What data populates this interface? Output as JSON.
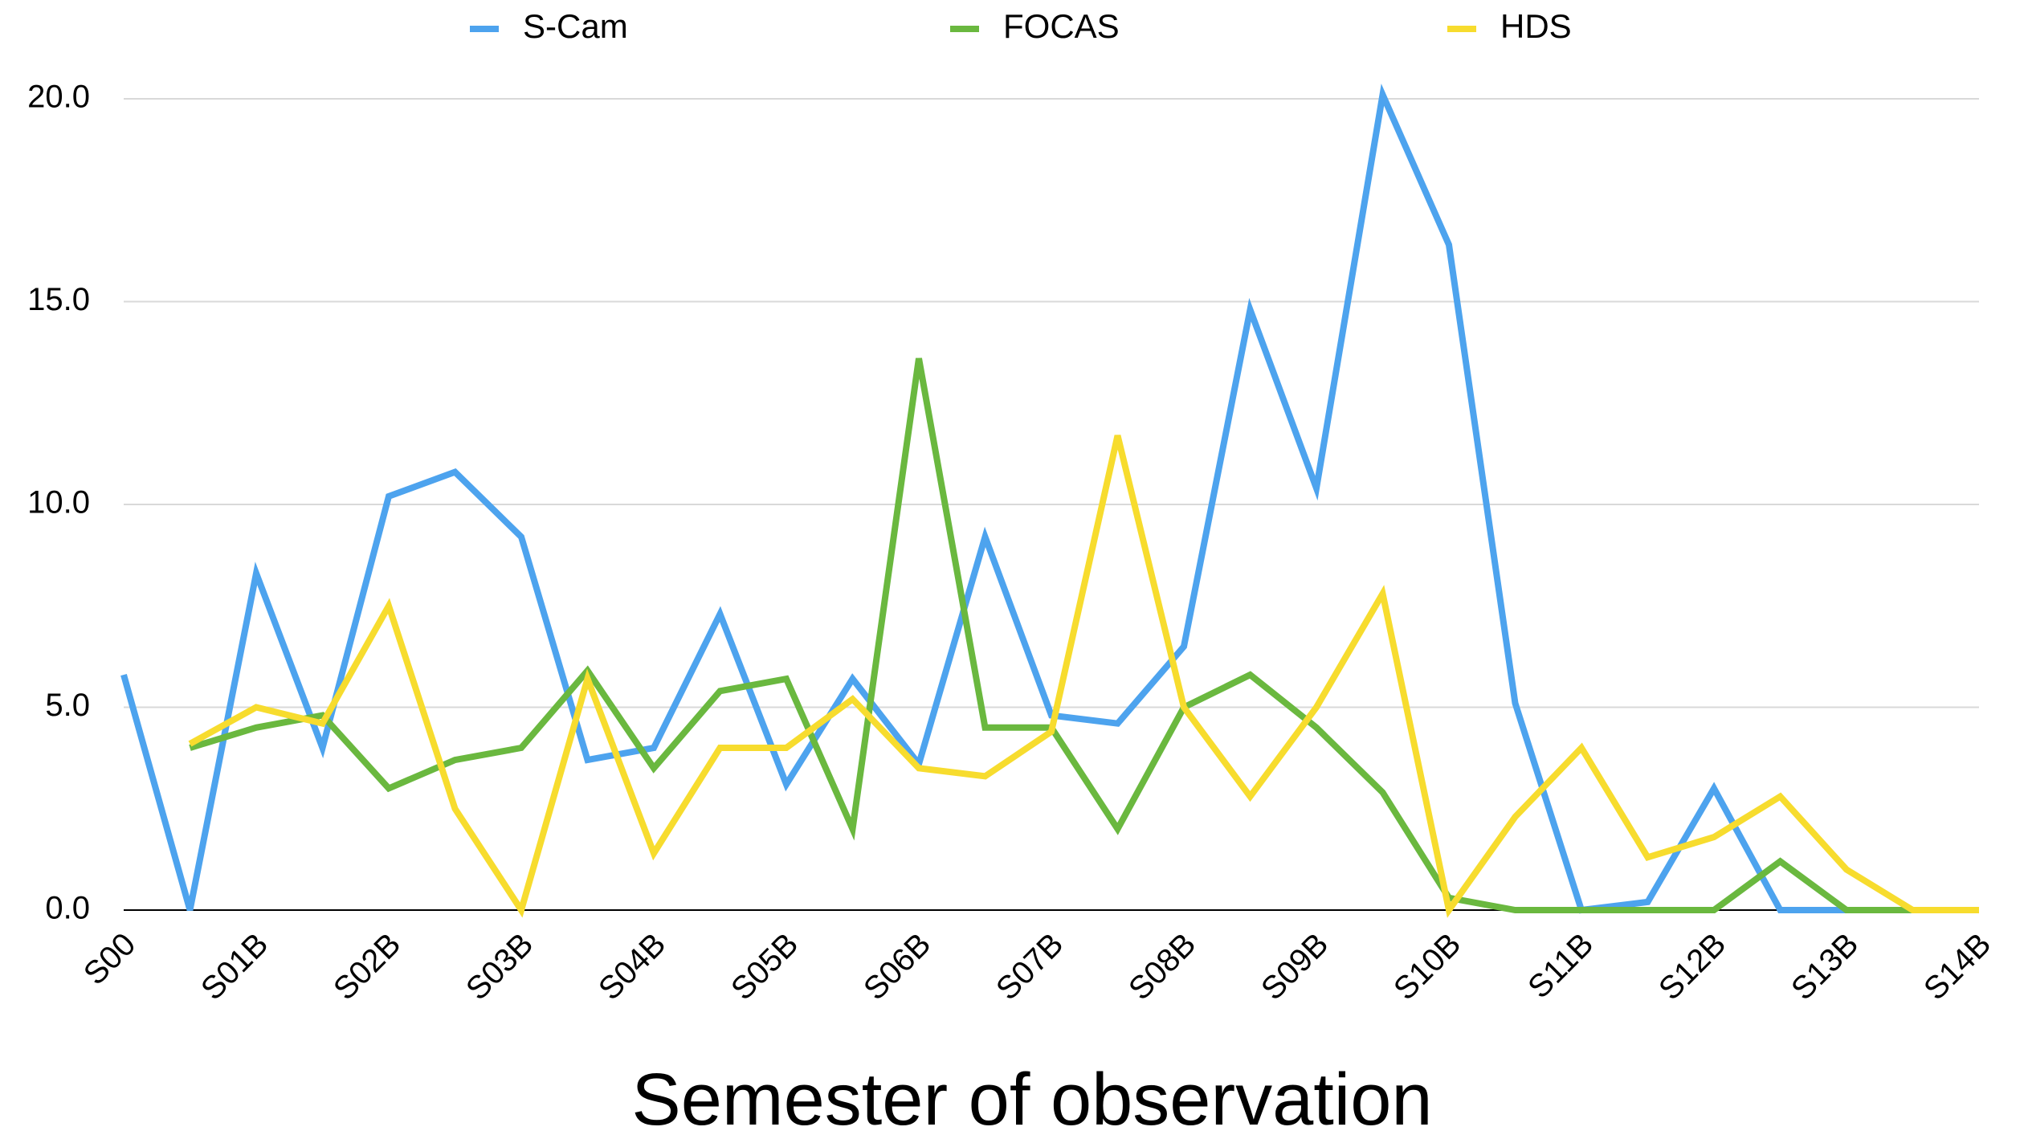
{
  "chart_data": {
    "type": "line",
    "xlabel": "Semester of observation",
    "categories": [
      "S00",
      null,
      "S01B",
      null,
      "S02B",
      null,
      "S03B",
      null,
      "S04B",
      null,
      "S05B",
      null,
      "S06B",
      null,
      "S07B",
      null,
      "S08B",
      null,
      "S09B",
      null,
      "S10B",
      null,
      "S11B",
      null,
      "S12B",
      null,
      "S13B",
      null,
      "S14B"
    ],
    "series": [
      {
        "name": "S-Cam",
        "color": "#4da3ee",
        "values": [
          5.8,
          0,
          8.3,
          4.0,
          10.2,
          10.8,
          9.2,
          3.7,
          4.0,
          7.3,
          3.1,
          5.7,
          3.6,
          9.2,
          4.8,
          4.6,
          6.5,
          14.8,
          10.4,
          20.1,
          16.4,
          5.1,
          0,
          0.2,
          3.0,
          0,
          0,
          0,
          0
        ]
      },
      {
        "name": "FOCAS",
        "color": "#6ab83f",
        "values": [
          null,
          4.0,
          4.5,
          4.8,
          3.0,
          3.7,
          4.0,
          5.9,
          3.5,
          5.4,
          5.7,
          2.0,
          13.6,
          4.5,
          4.5,
          2.0,
          5.0,
          5.8,
          4.5,
          2.9,
          0.3,
          0,
          0,
          0,
          0,
          1.2,
          0,
          0,
          0
        ]
      },
      {
        "name": "HDS",
        "color": "#f7dc2e",
        "values": [
          null,
          4.1,
          5.0,
          4.6,
          7.5,
          2.5,
          0,
          5.7,
          1.4,
          4.0,
          4.0,
          5.2,
          3.5,
          3.3,
          4.4,
          11.7,
          5.0,
          2.8,
          5.0,
          7.8,
          0,
          2.3,
          4.0,
          1.3,
          1.8,
          2.8,
          1.0,
          0,
          0
        ]
      }
    ],
    "ylim": [
      0,
      20
    ],
    "yticks": [
      {
        "value": 0,
        "label": "0.0"
      },
      {
        "value": 5,
        "label": "5.0"
      },
      {
        "value": 10,
        "label": "10.0"
      },
      {
        "value": 15,
        "label": "15.0"
      },
      {
        "value": 20,
        "label": "20.0"
      }
    ],
    "grid": true,
    "legend": "top"
  }
}
